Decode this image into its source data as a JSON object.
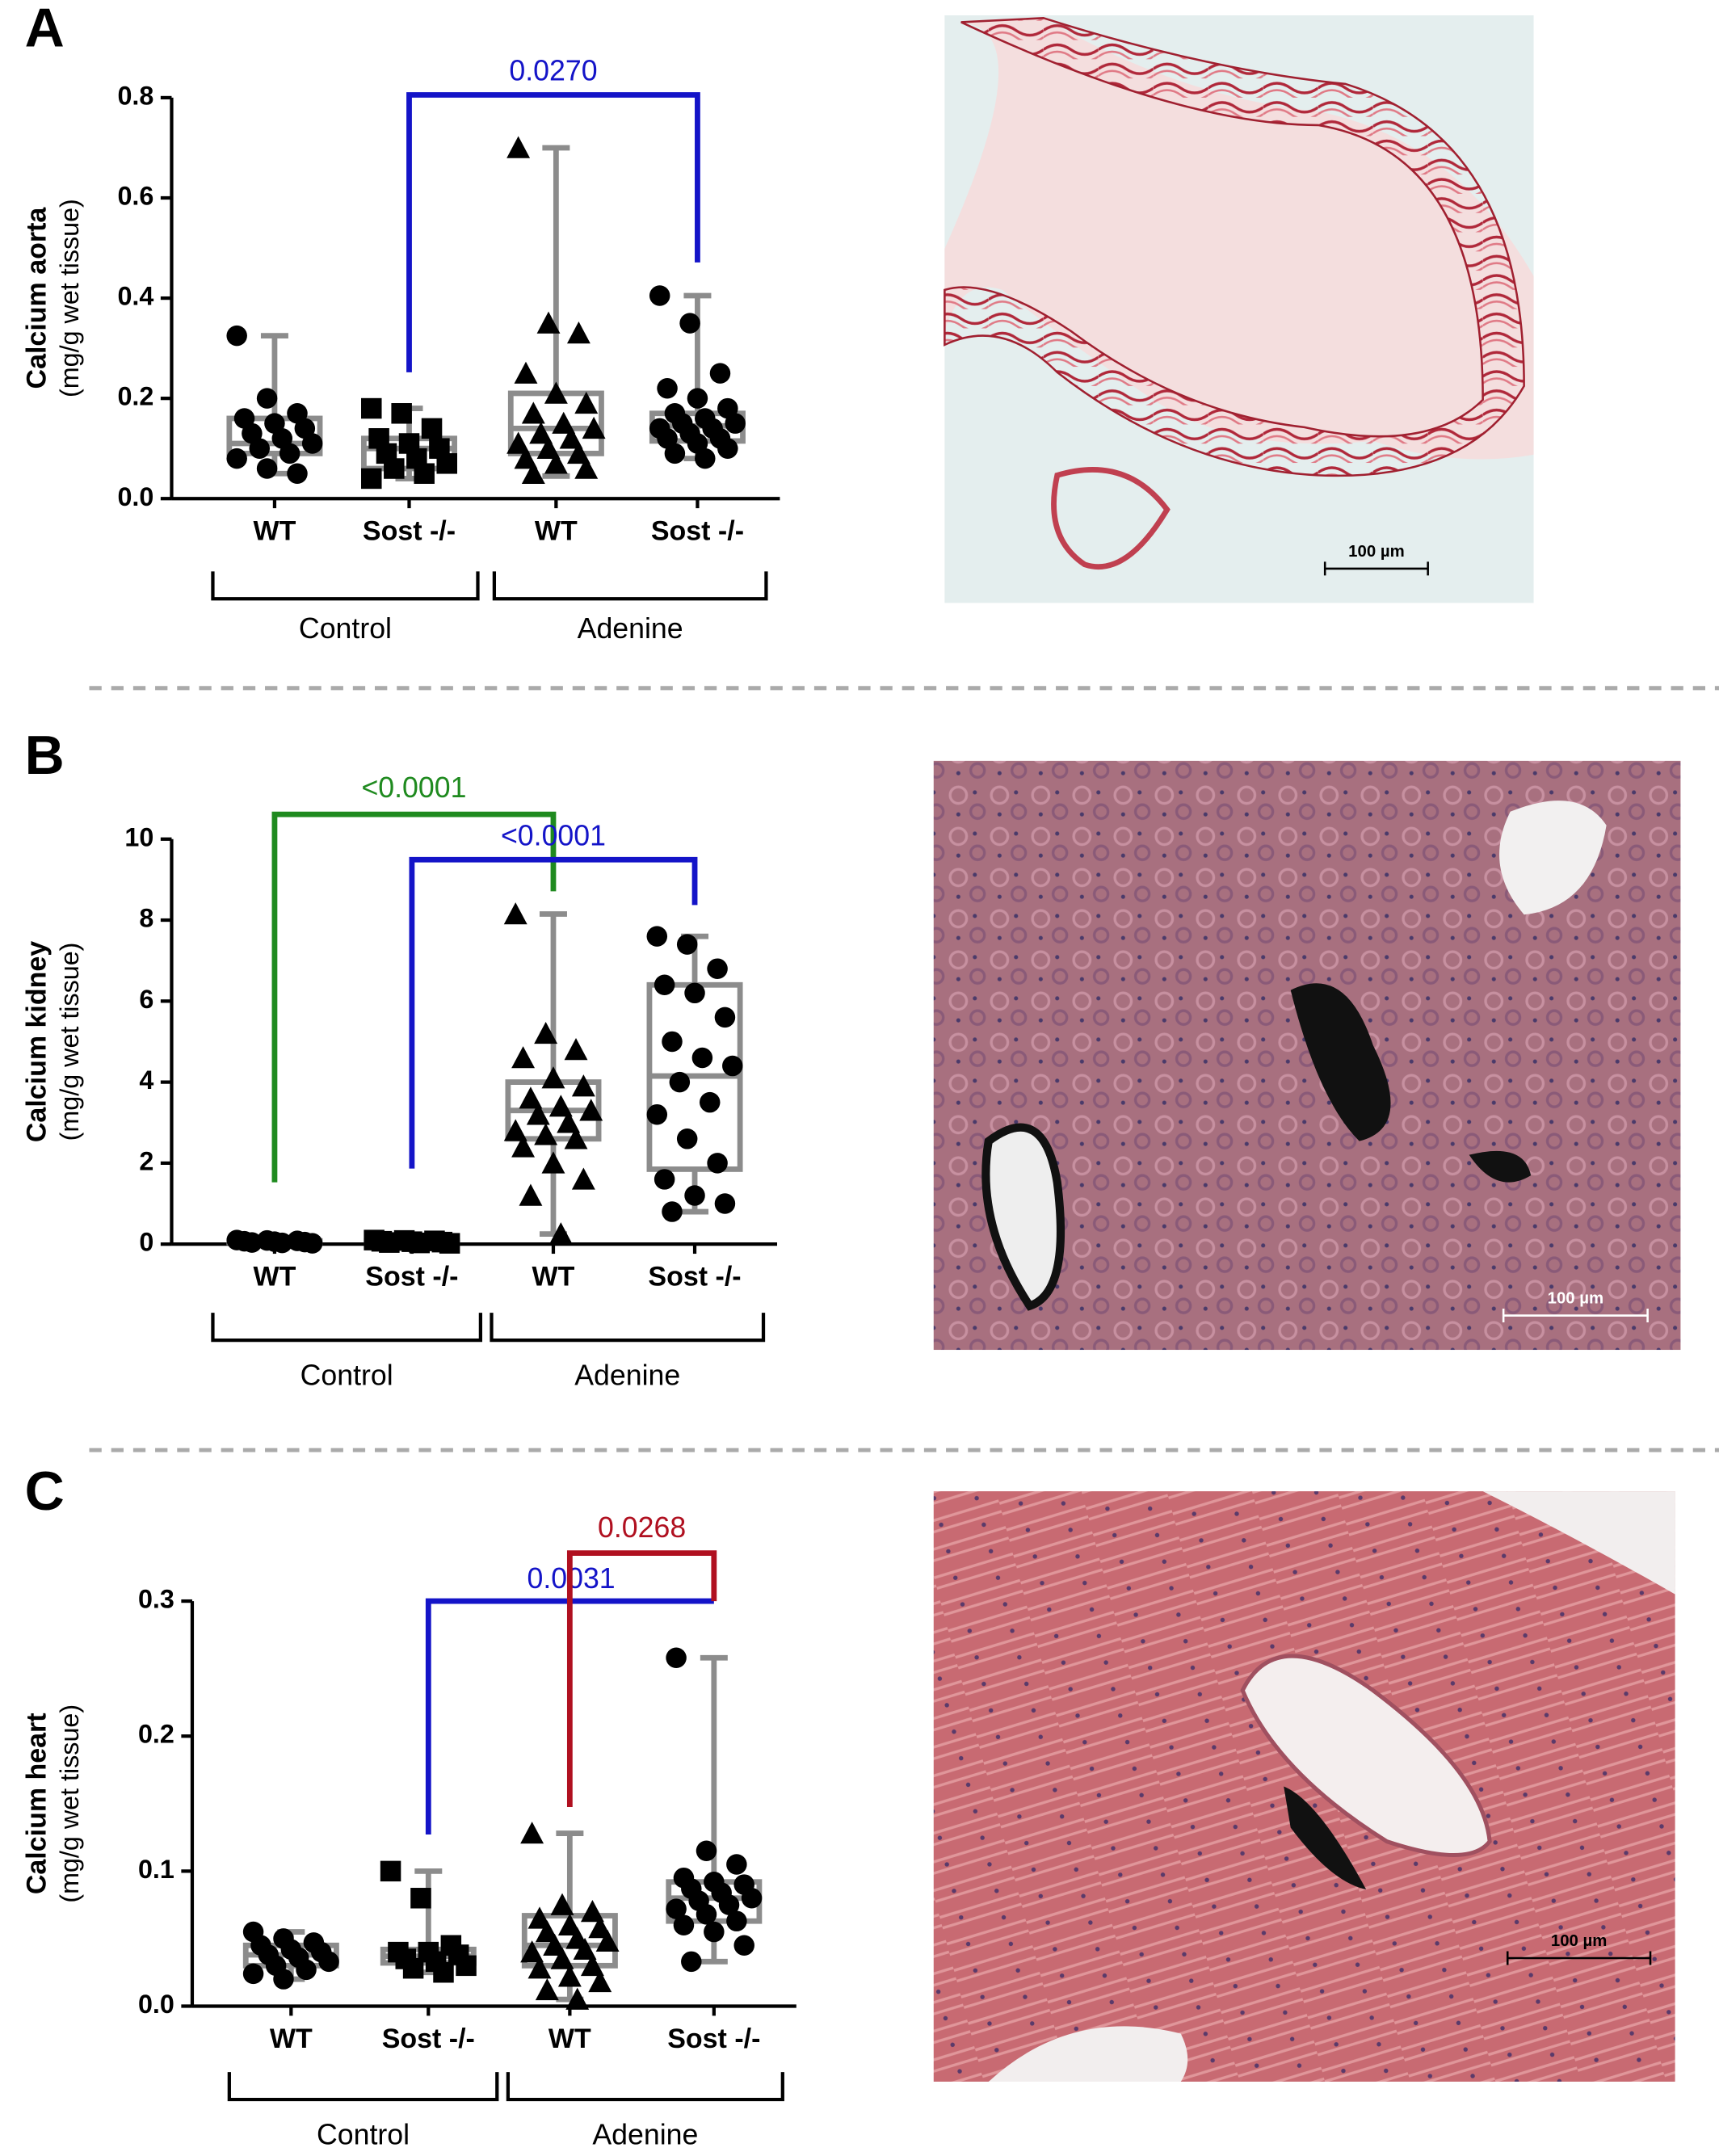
{
  "chart_data": [
    {
      "type": "box",
      "panel": "A",
      "y_label": [
        "Calcium aorta",
        "(mg/g wet tissue)"
      ],
      "categories": [
        "WT",
        "Sost -/-",
        "WT",
        "Sost -/-"
      ],
      "groups": [
        "Control",
        "Adenine"
      ],
      "ylim": [
        0,
        0.8
      ],
      "yticks": [
        {
          "value": 0,
          "label": "0.0"
        },
        {
          "value": 0.2,
          "label": "0.2"
        },
        {
          "value": 0.4,
          "label": "0.4"
        },
        {
          "value": 0.6,
          "label": "0.6"
        },
        {
          "value": 0.8,
          "label": "0.8"
        }
      ],
      "box_color": "#8c8c8c",
      "point_color": "#000000",
      "boxes": [
        {
          "marker": "circle",
          "min": 0.05,
          "q1": 0.09,
          "median": 0.11,
          "q3": 0.16,
          "max": 0.325,
          "points": [
            0.325,
            0.2,
            0.17,
            0.16,
            0.15,
            0.14,
            0.13,
            0.12,
            0.11,
            0.1,
            0.09,
            0.08,
            0.06,
            0.05
          ]
        },
        {
          "marker": "square",
          "min": 0.04,
          "q1": 0.06,
          "median": 0.1,
          "q3": 0.12,
          "max": 0.18,
          "points": [
            0.18,
            0.17,
            0.14,
            0.12,
            0.11,
            0.1,
            0.09,
            0.08,
            0.07,
            0.06,
            0.05,
            0.04
          ]
        },
        {
          "marker": "triangle",
          "min": 0.045,
          "q1": 0.09,
          "median": 0.14,
          "q3": 0.21,
          "max": 0.7,
          "points": [
            0.7,
            0.35,
            0.33,
            0.25,
            0.21,
            0.19,
            0.17,
            0.15,
            0.14,
            0.13,
            0.12,
            0.11,
            0.1,
            0.09,
            0.08,
            0.07,
            0.06,
            0.05
          ]
        },
        {
          "marker": "circle",
          "min": 0.08,
          "q1": 0.115,
          "median": 0.145,
          "q3": 0.17,
          "max": 0.405,
          "points": [
            0.405,
            0.35,
            0.25,
            0.22,
            0.2,
            0.18,
            0.17,
            0.16,
            0.15,
            0.15,
            0.14,
            0.14,
            0.13,
            0.12,
            0.12,
            0.11,
            0.1,
            0.09,
            0.08
          ]
        }
      ],
      "comparisons": [
        {
          "label": "0.0270",
          "color": "#1414c8",
          "from": 1,
          "to": 3
        }
      ]
    },
    {
      "type": "box",
      "panel": "B",
      "y_label": [
        "Calcium kidney",
        "(mg/g wet tissue)"
      ],
      "categories": [
        "WT",
        "Sost -/-",
        "WT",
        "Sost -/-"
      ],
      "groups": [
        "Control",
        "Adenine"
      ],
      "ylim": [
        0,
        10
      ],
      "yticks": [
        0,
        2,
        4,
        6,
        8,
        10
      ],
      "box_color": "#8c8c8c",
      "point_color": "#000000",
      "boxes": [
        {
          "marker": "circle",
          "min": 0.02,
          "q1": 0.04,
          "median": 0.06,
          "q3": 0.08,
          "max": 0.1,
          "points": [
            0.1,
            0.09,
            0.08,
            0.07,
            0.06,
            0.05,
            0.04,
            0.03,
            0.02
          ]
        },
        {
          "marker": "square",
          "min": 0.02,
          "q1": 0.04,
          "median": 0.06,
          "q3": 0.08,
          "max": 0.1,
          "points": [
            0.1,
            0.09,
            0.08,
            0.07,
            0.06,
            0.05,
            0.04,
            0.03,
            0.02
          ]
        },
        {
          "marker": "triangle",
          "min": 0.25,
          "q1": 2.6,
          "median": 3.3,
          "q3": 4.0,
          "max": 8.15,
          "points": [
            8.15,
            5.2,
            4.8,
            4.6,
            4.1,
            3.9,
            3.6,
            3.4,
            3.3,
            3.2,
            3.0,
            2.8,
            2.7,
            2.6,
            2.4,
            2.0,
            1.6,
            1.2,
            0.25
          ]
        },
        {
          "marker": "circle",
          "min": 0.8,
          "q1": 1.85,
          "median": 4.15,
          "q3": 6.4,
          "max": 7.6,
          "points": [
            7.6,
            7.4,
            6.8,
            6.4,
            6.2,
            5.6,
            5.0,
            4.6,
            4.4,
            4.0,
            3.5,
            3.2,
            2.6,
            2.0,
            1.6,
            1.2,
            1.0,
            0.8
          ]
        }
      ],
      "comparisons": [
        {
          "label": "<0.0001",
          "color": "#1f8a1f",
          "from": 0,
          "to": 2
        },
        {
          "label": "<0.0001",
          "color": "#1414c8",
          "from": 1,
          "to": 3
        }
      ]
    },
    {
      "type": "box",
      "panel": "C",
      "y_label": [
        "Calcium heart",
        "(mg/g wet tissue)"
      ],
      "categories": [
        "WT",
        "Sost -/-",
        "WT",
        "Sost -/-"
      ],
      "groups": [
        "Control",
        "Adenine"
      ],
      "ylim": [
        0,
        0.3
      ],
      "yticks": [
        {
          "value": 0,
          "label": "0.0"
        },
        {
          "value": 0.1,
          "label": "0.1"
        },
        {
          "value": 0.2,
          "label": "0.2"
        },
        {
          "value": 0.3,
          "label": "0.3"
        }
      ],
      "box_color": "#8c8c8c",
      "point_color": "#000000",
      "boxes": [
        {
          "marker": "circle",
          "min": 0.02,
          "q1": 0.03,
          "median": 0.038,
          "q3": 0.045,
          "max": 0.055,
          "points": [
            0.055,
            0.05,
            0.047,
            0.045,
            0.042,
            0.04,
            0.038,
            0.036,
            0.033,
            0.03,
            0.027,
            0.024,
            0.02
          ]
        },
        {
          "marker": "square",
          "min": 0.025,
          "q1": 0.032,
          "median": 0.037,
          "q3": 0.042,
          "max": 0.1,
          "points": [
            0.1,
            0.08,
            0.045,
            0.04,
            0.04,
            0.038,
            0.035,
            0.033,
            0.03,
            0.028,
            0.025
          ]
        },
        {
          "marker": "triangle",
          "min": 0.005,
          "q1": 0.03,
          "median": 0.045,
          "q3": 0.067,
          "max": 0.128,
          "points": [
            0.128,
            0.075,
            0.07,
            0.065,
            0.06,
            0.058,
            0.055,
            0.05,
            0.048,
            0.045,
            0.042,
            0.04,
            0.035,
            0.03,
            0.028,
            0.022,
            0.018,
            0.012,
            0.005
          ]
        },
        {
          "marker": "circle",
          "min": 0.033,
          "q1": 0.063,
          "median": 0.08,
          "q3": 0.092,
          "max": 0.258,
          "points": [
            0.258,
            0.115,
            0.105,
            0.095,
            0.092,
            0.09,
            0.087,
            0.084,
            0.08,
            0.078,
            0.075,
            0.072,
            0.068,
            0.063,
            0.06,
            0.055,
            0.045,
            0.033
          ]
        }
      ],
      "comparisons": [
        {
          "label": "0.0031",
          "color": "#1414c8",
          "from": 1,
          "to": 3
        },
        {
          "label": "0.0268",
          "color": "#b01020",
          "from": 2,
          "to": 3
        }
      ]
    }
  ],
  "micrographs": [
    {
      "scale_bar": "100 µm"
    },
    {
      "scale_bar": "100 µm"
    },
    {
      "scale_bar": "100 µm"
    }
  ]
}
